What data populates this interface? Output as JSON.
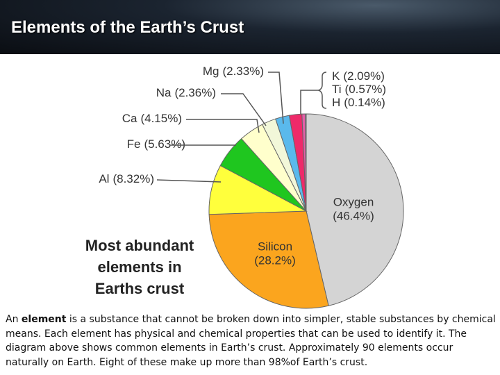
{
  "slide_title": "Elements of the Earth’s Crust",
  "caption": [
    "An ",
    "element",
    " is a substance that cannot be broken down into simpler, stable substances by chemical means. Each element has physical and chemical properties that can be used to identify it. The diagram above shows common elements in Earth’s crust. Approximately 90 elements occur naturally on Earth. Eight of these make up more than 98%of Earth’s crust."
  ],
  "chart_data": {
    "type": "pie",
    "title": "Most abundant elements in Earths crust",
    "categories": [
      "Oxygen",
      "Silicon",
      "Al",
      "Fe",
      "Ca",
      "Na",
      "Mg",
      "K",
      "Ti",
      "H"
    ],
    "values": [
      46.4,
      28.2,
      8.32,
      5.63,
      4.15,
      2.36,
      2.33,
      2.09,
      0.57,
      0.14
    ],
    "value_labels": [
      "(46.4%)",
      "(28.2%)",
      "(8.32%)",
      "(5.63%)",
      "(4.15%)",
      "(2.36%)",
      "(2.33%)",
      "(2.09%)",
      "(0.57%)",
      "(0.14%)"
    ],
    "colors": [
      "#d4d4d4",
      "#fba51e",
      "#ffff3c",
      "#1fc61f",
      "#ffffcc",
      "#f2f7d9",
      "#5ab9ec",
      "#ee2a6a",
      "#e45fa8",
      "#b98de0"
    ]
  }
}
